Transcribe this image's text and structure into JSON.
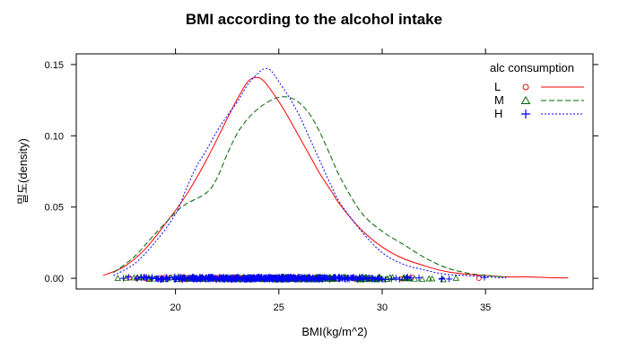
{
  "chart_data": {
    "type": "density",
    "title": "BMI according to the alcohol intake",
    "xlabel": "BMI(kg/m^2)",
    "ylabel": "밀도(density)",
    "xlim": [
      15.2,
      40.2
    ],
    "ylim": [
      -0.0075,
      0.1575
    ],
    "x_ticks": [
      20,
      25,
      30,
      35
    ],
    "y_ticks": [
      0.0,
      0.05,
      0.1,
      0.15
    ],
    "y_tick_labels": [
      "0.00",
      "0.05",
      "0.10",
      "0.15"
    ],
    "grid": false,
    "legend": {
      "title": "alc consumption",
      "placement": "top-right"
    },
    "series": [
      {
        "name": "L",
        "color": "#ff0000",
        "line_style": "solid",
        "marker": "circle",
        "x": [
          16.5,
          17.5,
          18.5,
          19.5,
          20.5,
          21.5,
          22.5,
          23.0,
          23.5,
          23.9,
          24.3,
          25.0,
          25.5,
          26.0,
          26.5,
          27.0,
          27.5,
          28.0,
          29.0,
          30.0,
          31.0,
          32.0,
          33.0,
          34.0,
          35.0,
          36.0,
          37.0,
          38.0,
          39.0
        ],
        "y": [
          0.002,
          0.008,
          0.02,
          0.038,
          0.058,
          0.083,
          0.112,
          0.126,
          0.138,
          0.141,
          0.138,
          0.124,
          0.112,
          0.099,
          0.086,
          0.073,
          0.062,
          0.051,
          0.034,
          0.022,
          0.014,
          0.009,
          0.005,
          0.003,
          0.002,
          0.001,
          0.001,
          0.0005,
          0.0003
        ]
      },
      {
        "name": "M",
        "color": "#006400",
        "line_style": "dashed",
        "marker": "triangle",
        "x": [
          17.0,
          18.0,
          19.0,
          20.0,
          20.5,
          21.5,
          22.0,
          22.5,
          23.0,
          23.5,
          24.0,
          24.5,
          25.0,
          25.5,
          26.0,
          26.5,
          27.0,
          27.5,
          28.0,
          29.0,
          30.0,
          31.0,
          32.0,
          33.0,
          34.0,
          35.0,
          36.0
        ],
        "y": [
          0.004,
          0.015,
          0.031,
          0.046,
          0.052,
          0.06,
          0.07,
          0.087,
          0.102,
          0.112,
          0.119,
          0.124,
          0.127,
          0.127,
          0.123,
          0.115,
          0.102,
          0.086,
          0.07,
          0.046,
          0.033,
          0.024,
          0.015,
          0.008,
          0.004,
          0.002,
          0.001
        ]
      },
      {
        "name": "H",
        "color": "#0000ff",
        "line_style": "dotted",
        "marker": "plus",
        "x": [
          17.0,
          18.0,
          19.0,
          20.0,
          20.5,
          21.0,
          21.5,
          22.0,
          22.5,
          23.0,
          23.5,
          24.0,
          24.3,
          24.6,
          25.0,
          25.5,
          26.0,
          26.5,
          27.0,
          27.5,
          28.0,
          29.0,
          30.0,
          31.0,
          32.0,
          33.0,
          34.0,
          35.0,
          36.0
        ],
        "y": [
          0.002,
          0.01,
          0.025,
          0.045,
          0.062,
          0.078,
          0.09,
          0.103,
          0.114,
          0.124,
          0.136,
          0.144,
          0.147,
          0.146,
          0.138,
          0.127,
          0.114,
          0.098,
          0.082,
          0.066,
          0.052,
          0.033,
          0.018,
          0.01,
          0.006,
          0.003,
          0.002,
          0.001,
          0.0003
        ]
      }
    ]
  }
}
